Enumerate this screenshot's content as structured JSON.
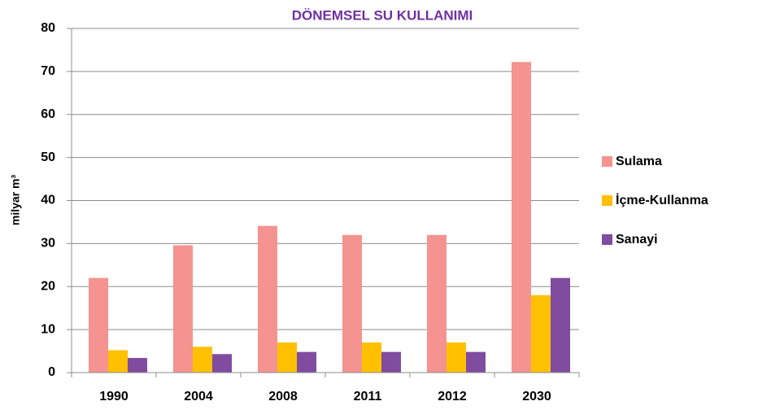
{
  "chart_data": {
    "type": "bar",
    "title": "DÖNEMSEL SU KULLANIMI",
    "y_label": "milyar m³",
    "categories": [
      "1990",
      "2004",
      "2008",
      "2011",
      "2012",
      "2030"
    ],
    "series": [
      {
        "name": "Sulama",
        "color": "#f4938f",
        "values": [
          22,
          29.6,
          34.1,
          32,
          32,
          72.2
        ]
      },
      {
        "name": "İçme-Kullanma",
        "color": "#ffc000",
        "values": [
          5.2,
          6,
          7,
          7,
          7,
          18
        ]
      },
      {
        "name": "Sanayi",
        "color": "#7f4ca0",
        "values": [
          3.4,
          4.3,
          4.8,
          4.8,
          4.8,
          22
        ]
      }
    ],
    "ylim": [
      0,
      80
    ],
    "yticks": [
      0,
      10,
      20,
      30,
      40,
      50,
      60,
      70,
      80
    ],
    "grid": true,
    "legend": "right"
  }
}
